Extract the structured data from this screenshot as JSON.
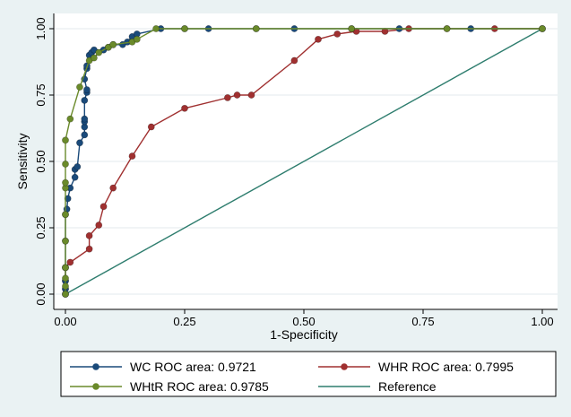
{
  "chart_data": {
    "type": "line",
    "xlabel": "1-Specificity",
    "ylabel": "Sensitivity",
    "xlim": [
      0,
      1
    ],
    "ylim": [
      0,
      1
    ],
    "x_ticks": [
      "0.00",
      "0.25",
      "0.50",
      "0.75",
      "1.00"
    ],
    "y_ticks": [
      "0.00",
      "0.25",
      "0.50",
      "0.75",
      "1.00"
    ],
    "grid": true,
    "legend_position": "bottom",
    "series": [
      {
        "name": "WC ROC area: 0.9721",
        "color": "#1a4a7a",
        "marker": "circle",
        "points": [
          [
            0,
            0
          ],
          [
            0,
            0.02
          ],
          [
            0,
            0.05
          ],
          [
            0,
            0.1
          ],
          [
            0,
            0.2
          ],
          [
            0,
            0.3
          ],
          [
            0.003,
            0.32
          ],
          [
            0.005,
            0.36
          ],
          [
            0.01,
            0.4
          ],
          [
            0.02,
            0.44
          ],
          [
            0.02,
            0.47
          ],
          [
            0.025,
            0.48
          ],
          [
            0.03,
            0.57
          ],
          [
            0.04,
            0.6
          ],
          [
            0.04,
            0.63
          ],
          [
            0.04,
            0.65
          ],
          [
            0.04,
            0.66
          ],
          [
            0.04,
            0.73
          ],
          [
            0.045,
            0.76
          ],
          [
            0.045,
            0.77
          ],
          [
            0.04,
            0.81
          ],
          [
            0.045,
            0.85
          ],
          [
            0.045,
            0.86
          ],
          [
            0.05,
            0.9
          ],
          [
            0.055,
            0.91
          ],
          [
            0.06,
            0.92
          ],
          [
            0.08,
            0.92
          ],
          [
            0.09,
            0.93
          ],
          [
            0.1,
            0.94
          ],
          [
            0.12,
            0.94
          ],
          [
            0.13,
            0.95
          ],
          [
            0.14,
            0.97
          ],
          [
            0.15,
            0.98
          ],
          [
            0.2,
            1.0
          ],
          [
            0.25,
            1.0
          ],
          [
            0.3,
            1.0
          ],
          [
            0.4,
            1.0
          ],
          [
            0.48,
            1.0
          ],
          [
            0.6,
            1.0
          ],
          [
            0.7,
            1.0
          ],
          [
            0.85,
            1.0
          ],
          [
            1.0,
            1.0
          ]
        ]
      },
      {
        "name": "WHR ROC area: 0.7995",
        "color": "#a03030",
        "marker": "circle",
        "points": [
          [
            0,
            0
          ],
          [
            0,
            0.02
          ],
          [
            0,
            0.05
          ],
          [
            0,
            0.1
          ],
          [
            0.01,
            0.12
          ],
          [
            0.05,
            0.17
          ],
          [
            0.05,
            0.22
          ],
          [
            0.07,
            0.26
          ],
          [
            0.08,
            0.33
          ],
          [
            0.1,
            0.4
          ],
          [
            0.14,
            0.52
          ],
          [
            0.18,
            0.63
          ],
          [
            0.25,
            0.7
          ],
          [
            0.34,
            0.74
          ],
          [
            0.36,
            0.75
          ],
          [
            0.39,
            0.75
          ],
          [
            0.48,
            0.88
          ],
          [
            0.53,
            0.96
          ],
          [
            0.57,
            0.98
          ],
          [
            0.61,
            0.99
          ],
          [
            0.67,
            0.99
          ],
          [
            0.72,
            1.0
          ],
          [
            0.8,
            1.0
          ],
          [
            0.9,
            1.0
          ],
          [
            1.0,
            1.0
          ]
        ]
      },
      {
        "name": "WHtR ROC area: 0.9785",
        "color": "#6a8a2a",
        "marker": "circle",
        "points": [
          [
            0,
            0
          ],
          [
            0,
            0.03
          ],
          [
            0,
            0.06
          ],
          [
            0,
            0.1
          ],
          [
            0,
            0.2
          ],
          [
            0,
            0.3
          ],
          [
            0,
            0.4
          ],
          [
            0,
            0.42
          ],
          [
            0,
            0.49
          ],
          [
            0,
            0.58
          ],
          [
            0.01,
            0.66
          ],
          [
            0.03,
            0.78
          ],
          [
            0.05,
            0.88
          ],
          [
            0.06,
            0.89
          ],
          [
            0.07,
            0.91
          ],
          [
            0.09,
            0.93
          ],
          [
            0.1,
            0.94
          ],
          [
            0.14,
            0.95
          ],
          [
            0.15,
            0.96
          ],
          [
            0.19,
            1.0
          ],
          [
            0.25,
            1.0
          ],
          [
            0.4,
            1.0
          ],
          [
            0.6,
            1.0
          ],
          [
            0.8,
            1.0
          ],
          [
            1.0,
            1.0
          ]
        ]
      },
      {
        "name": "Reference",
        "color": "#2e7d6e",
        "marker": "none",
        "points": [
          [
            0,
            0
          ],
          [
            1,
            1
          ]
        ]
      }
    ]
  }
}
